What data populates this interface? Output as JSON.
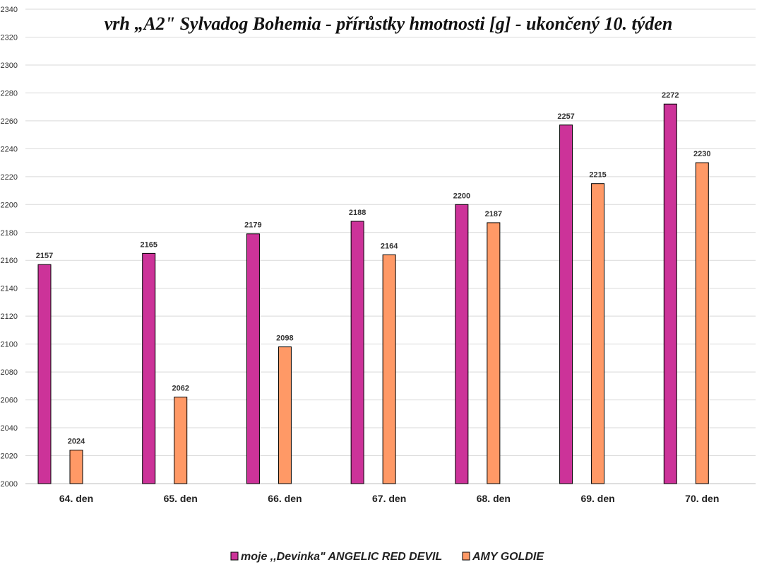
{
  "chart_data": {
    "type": "bar",
    "title": "vrh „A2\" Sylvadog Bohemia - přírůstky hmotnosti [g] - ukončený 10. týden",
    "categories": [
      "64. den",
      "65. den",
      "66. den",
      "67. den",
      "68. den",
      "69. den",
      "70. den"
    ],
    "series": [
      {
        "name": "moje ,,Devinka\" ANGELIC RED DEVIL",
        "color": "#cc3399",
        "values": [
          2157,
          2165,
          2179,
          2188,
          2200,
          2257,
          2272
        ]
      },
      {
        "name": "AMY GOLDIE",
        "color": "#ff9966",
        "values": [
          2024,
          2062,
          2098,
          2164,
          2187,
          2215,
          2230
        ]
      }
    ],
    "ylim": [
      2000,
      2340
    ],
    "ytick_step": 20,
    "grid": true,
    "legend": "bottom",
    "data_labels": true
  }
}
